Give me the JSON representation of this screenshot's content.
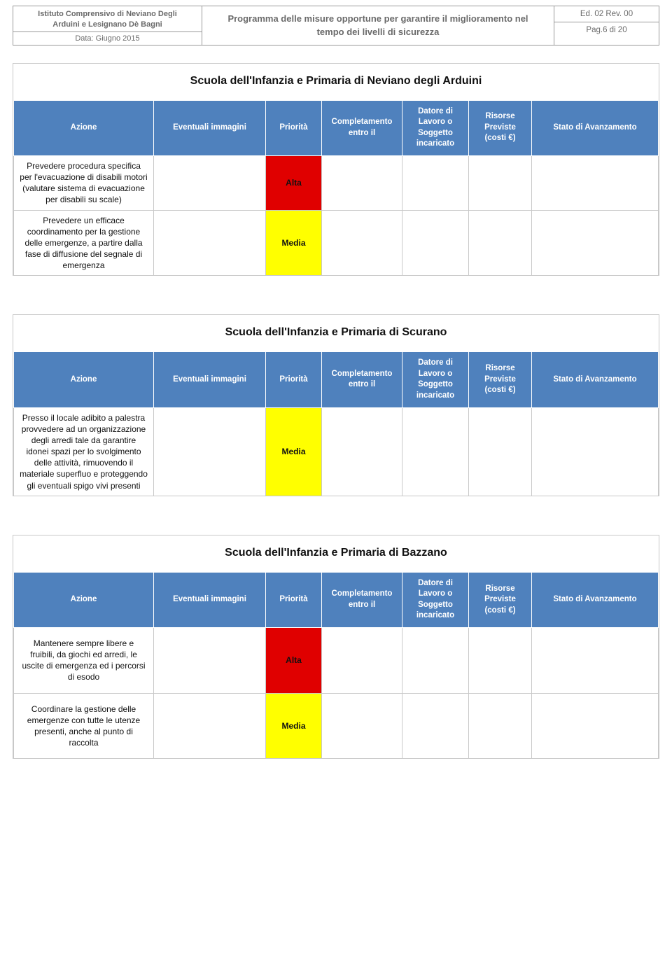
{
  "header": {
    "org_line1": "Istituto Comprensivo di Neviano Degli",
    "org_line2": "Arduini e Lesignano Dè Bagni",
    "date": "Data: Giugno 2015",
    "program_title": "Programma delle misure opportune per garantire il miglioramento nel tempo dei livelli di sicurezza",
    "ed_rev": "Ed. 02 Rev. 00",
    "page": "Pag.6 di 20"
  },
  "columns": {
    "azione": "Azione",
    "immagini": "Eventuali immagini",
    "priorita": "Priorità",
    "completamento": "Completamento entro il",
    "datore": "Datore di Lavoro o Soggetto incaricato",
    "risorse": "Risorse Previste (costi €)",
    "stato": "Stato di Avanzamento"
  },
  "priority_labels": {
    "alta": "Alta",
    "media": "Media"
  },
  "priority_colors": {
    "alta_bg": "#e00000",
    "alta_fg": "#ffffff",
    "media_bg": "#ffff00",
    "media_fg": "#000000"
  },
  "theme": {
    "header_blue": "#4f81bd",
    "header_text": "#ffffff",
    "border_gray": "#c8c8c8",
    "doc_header_text": "#6a6a6a"
  },
  "sections": [
    {
      "title": "Scuola dell'Infanzia e Primaria di Neviano degli Arduini",
      "rows": [
        {
          "azione": "Prevedere procedura specifica per l'evacuazione di disabili motori (valutare sistema di evacuazione per disabili su scale)",
          "priorita": "alta",
          "tall": false
        },
        {
          "azione": "Prevedere un efficace coordinamento per la gestione delle emergenze, a partire dalla fase di diffusione del segnale di emergenza",
          "priorita": "media",
          "tall": false
        }
      ]
    },
    {
      "title": "Scuola dell'Infanzia e Primaria di Scurano",
      "rows": [
        {
          "azione": "Presso il locale adibito a palestra provvedere ad un organizzazione degli arredi tale da garantire idonei spazi per lo svolgimento delle attività, rimuovendo il materiale superfluo e proteggendo gli eventuali spigo vivi presenti",
          "priorita": "media",
          "tall": false
        }
      ]
    },
    {
      "title": "Scuola  dell'Infanzia e Primaria di Bazzano",
      "rows": [
        {
          "azione": "Mantenere sempre libere e fruibili, da giochi ed arredi, le uscite di emergenza ed i percorsi di esodo",
          "priorita": "alta",
          "tall": true
        },
        {
          "azione": "Coordinare la gestione delle emergenze con tutte le utenze presenti, anche al punto di raccolta",
          "priorita": "media",
          "tall": true
        }
      ]
    }
  ]
}
